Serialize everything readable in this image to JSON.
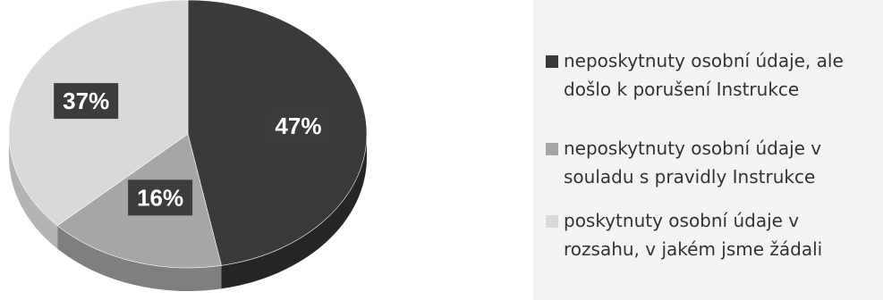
{
  "chart_data": {
    "type": "pie",
    "slices": [
      {
        "label": "neposkytnuty osobní údaje, ale došlo k porušení Instrukce",
        "value": 47,
        "value_label": "47%",
        "color": "#3a3a3a",
        "side_color": "#252525"
      },
      {
        "label": "neposkytnuty osobní údaje v souladu s pravidly Instrukce",
        "value": 16,
        "value_label": "16%",
        "color": "#a6a6a6",
        "side_color": "#7f7f7f"
      },
      {
        "label": "poskytnuty osobní údaje v rozsahu, v jakém jsme žádali",
        "value": 37,
        "value_label": "37%",
        "color": "#d9d9d9",
        "side_color": "#b4b4b4"
      }
    ],
    "legend_position": "right",
    "style": "3d"
  }
}
